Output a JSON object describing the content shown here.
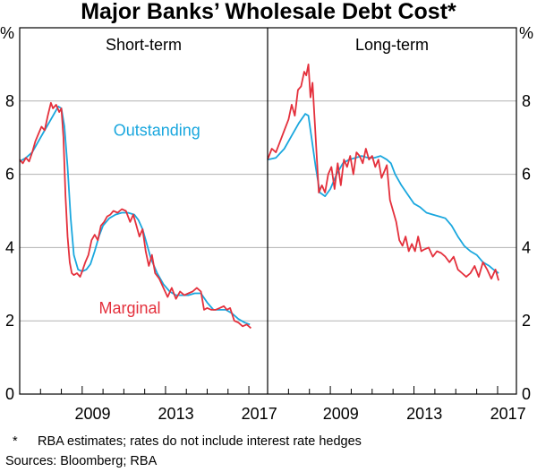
{
  "title": "Major Banks’ Wholesale Debt Cost*",
  "footnote": {
    "marker": "*",
    "text": "RBA estimates; rates do not include interest rate hedges"
  },
  "sources": "Sources: Bloomberg; RBA",
  "colors": {
    "marginal": "#e4303c",
    "outstanding": "#1aa7de",
    "grid": "#b3b3b3",
    "axis": "#000000"
  },
  "chart_data": {
    "type": "line",
    "y_unit": "%",
    "ylim": [
      0,
      10
    ],
    "y_ticks": [
      0,
      2,
      4,
      6,
      8
    ],
    "xlim": [
      2006,
      2017.9
    ],
    "x_ticks": [
      2009,
      2013,
      2017
    ],
    "grid": "horizontal",
    "panels": [
      {
        "name": "short-term",
        "title": "Short-term",
        "annotations": [
          {
            "text": "Outstanding",
            "series": "Outstanding",
            "x": 2010.5,
            "y": 7.2
          },
          {
            "text": "Marginal",
            "series": "Marginal",
            "x": 2009.8,
            "y": 2.35
          }
        ],
        "series": [
          {
            "name": "Outstanding",
            "color": "#1aa7de",
            "x": [
              2006.0,
              2006.3,
              2006.6,
              2006.9,
              2007.2,
              2007.5,
              2007.7,
              2007.85,
              2008.0,
              2008.15,
              2008.3,
              2008.45,
              2008.6,
              2008.8,
              2009.0,
              2009.2,
              2009.4,
              2009.6,
              2009.8,
              2010.0,
              2010.3,
              2010.6,
              2010.9,
              2011.2,
              2011.5,
              2011.7,
              2011.9,
              2012.1,
              2012.3,
              2012.6,
              2012.9,
              2013.2,
              2013.5,
              2013.8,
              2014.1,
              2014.4,
              2014.7,
              2015.0,
              2015.3,
              2015.6,
              2015.9,
              2016.2,
              2016.5,
              2016.8,
              2017.05
            ],
            "y": [
              6.35,
              6.45,
              6.6,
              6.9,
              7.2,
              7.5,
              7.7,
              7.85,
              7.8,
              7.3,
              6.2,
              4.8,
              3.8,
              3.4,
              3.35,
              3.4,
              3.55,
              3.9,
              4.3,
              4.6,
              4.8,
              4.9,
              4.95,
              4.95,
              4.9,
              4.75,
              4.5,
              4.1,
              3.7,
              3.3,
              3.0,
              2.8,
              2.7,
              2.7,
              2.7,
              2.75,
              2.75,
              2.5,
              2.3,
              2.3,
              2.3,
              2.2,
              2.05,
              1.95,
              1.9
            ]
          },
          {
            "name": "Marginal",
            "color": "#e4303c",
            "x": [
              2006.0,
              2006.15,
              2006.3,
              2006.45,
              2006.6,
              2006.75,
              2006.9,
              2007.05,
              2007.2,
              2007.35,
              2007.5,
              2007.6,
              2007.75,
              2007.9,
              2008.0,
              2008.1,
              2008.2,
              2008.3,
              2008.4,
              2008.5,
              2008.6,
              2008.75,
              2008.9,
              2009.0,
              2009.15,
              2009.3,
              2009.45,
              2009.6,
              2009.75,
              2009.9,
              2010.05,
              2010.2,
              2010.35,
              2010.5,
              2010.7,
              2010.9,
              2011.1,
              2011.3,
              2011.45,
              2011.6,
              2011.75,
              2011.9,
              2012.05,
              2012.2,
              2012.35,
              2012.5,
              2012.7,
              2012.9,
              2013.1,
              2013.3,
              2013.5,
              2013.7,
              2013.9,
              2014.1,
              2014.3,
              2014.5,
              2014.7,
              2014.85,
              2015.0,
              2015.2,
              2015.4,
              2015.6,
              2015.8,
              2015.95,
              2016.1,
              2016.3,
              2016.5,
              2016.7,
              2016.9,
              2017.1
            ],
            "y": [
              6.4,
              6.3,
              6.45,
              6.35,
              6.6,
              6.9,
              7.1,
              7.3,
              7.2,
              7.6,
              7.95,
              7.8,
              7.9,
              7.7,
              7.8,
              7.0,
              5.4,
              4.3,
              3.6,
              3.3,
              3.25,
              3.3,
              3.2,
              3.35,
              3.6,
              3.8,
              4.2,
              4.35,
              4.2,
              4.6,
              4.7,
              4.85,
              4.9,
              5.0,
              4.95,
              5.05,
              5.0,
              4.7,
              4.9,
              4.6,
              4.3,
              4.5,
              3.9,
              3.5,
              3.8,
              3.3,
              3.15,
              2.9,
              2.65,
              2.9,
              2.6,
              2.8,
              2.7,
              2.75,
              2.8,
              2.9,
              2.8,
              2.3,
              2.35,
              2.3,
              2.3,
              2.35,
              2.4,
              2.3,
              2.35,
              2.0,
              1.95,
              1.85,
              1.9,
              1.8
            ]
          }
        ]
      },
      {
        "name": "long-term",
        "title": "Long-term",
        "annotations": [],
        "series": [
          {
            "name": "Outstanding",
            "color": "#1aa7de",
            "x": [
              2006.0,
              2006.4,
              2006.8,
              2007.2,
              2007.5,
              2007.8,
              2007.95,
              2008.1,
              2008.3,
              2008.5,
              2008.75,
              2009.0,
              2009.3,
              2009.6,
              2009.9,
              2010.2,
              2010.5,
              2010.8,
              2011.1,
              2011.4,
              2011.7,
              2011.9,
              2012.1,
              2012.4,
              2012.7,
              2013.0,
              2013.3,
              2013.6,
              2013.9,
              2014.2,
              2014.5,
              2014.8,
              2015.1,
              2015.4,
              2015.7,
              2016.0,
              2016.3,
              2016.6,
              2016.8,
              2017.05
            ],
            "y": [
              6.4,
              6.45,
              6.7,
              7.1,
              7.4,
              7.65,
              7.6,
              7.0,
              6.2,
              5.5,
              5.4,
              5.6,
              6.0,
              6.3,
              6.4,
              6.45,
              6.5,
              6.45,
              6.45,
              6.5,
              6.4,
              6.3,
              6.0,
              5.7,
              5.45,
              5.2,
              5.1,
              4.95,
              4.9,
              4.85,
              4.8,
              4.6,
              4.3,
              4.05,
              3.9,
              3.8,
              3.6,
              3.5,
              3.4,
              3.3
            ]
          },
          {
            "name": "Marginal",
            "color": "#e4303c",
            "x": [
              2006.0,
              2006.2,
              2006.4,
              2006.6,
              2006.8,
              2007.0,
              2007.15,
              2007.3,
              2007.45,
              2007.6,
              2007.75,
              2007.85,
              2007.95,
              2008.05,
              2008.15,
              2008.3,
              2008.45,
              2008.6,
              2008.75,
              2008.9,
              2009.05,
              2009.2,
              2009.35,
              2009.5,
              2009.65,
              2009.8,
              2009.95,
              2010.1,
              2010.25,
              2010.4,
              2010.55,
              2010.7,
              2010.85,
              2011.0,
              2011.15,
              2011.3,
              2011.45,
              2011.6,
              2011.7,
              2011.85,
              2012.0,
              2012.15,
              2012.3,
              2012.45,
              2012.6,
              2012.75,
              2012.9,
              2013.05,
              2013.2,
              2013.35,
              2013.5,
              2013.7,
              2013.9,
              2014.1,
              2014.3,
              2014.5,
              2014.7,
              2014.9,
              2015.1,
              2015.3,
              2015.5,
              2015.7,
              2015.9,
              2016.1,
              2016.3,
              2016.5,
              2016.7,
              2016.9,
              2017.05
            ],
            "y": [
              6.4,
              6.7,
              6.6,
              6.9,
              7.2,
              7.5,
              7.9,
              7.6,
              8.3,
              8.4,
              8.8,
              8.7,
              9.0,
              8.1,
              8.5,
              7.0,
              5.5,
              5.7,
              5.5,
              6.0,
              6.2,
              5.6,
              6.3,
              5.7,
              6.4,
              6.2,
              6.5,
              6.0,
              6.6,
              6.5,
              6.3,
              6.7,
              6.4,
              6.5,
              6.2,
              6.4,
              5.9,
              6.1,
              6.25,
              5.3,
              5.0,
              4.7,
              4.2,
              4.05,
              4.3,
              3.9,
              4.1,
              3.9,
              4.3,
              3.9,
              3.95,
              4.0,
              3.75,
              3.9,
              3.85,
              3.75,
              3.6,
              3.75,
              3.4,
              3.3,
              3.2,
              3.3,
              3.5,
              3.2,
              3.6,
              3.4,
              3.15,
              3.4,
              3.1
            ]
          }
        ]
      }
    ]
  }
}
